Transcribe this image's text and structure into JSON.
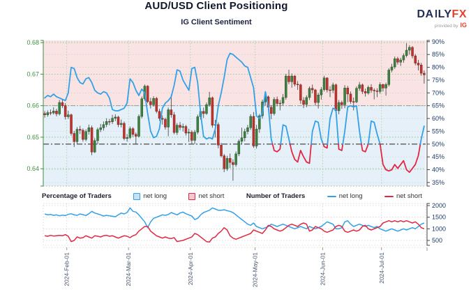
{
  "header": {
    "title": "AUD/USD Client Positioning",
    "subtitle": "IG Client Sentiment"
  },
  "logo": {
    "brand_left": "DA",
    "brand_mid": "LY",
    "brand_accent": "FX",
    "provided_by": "provided by",
    "provider": "IG"
  },
  "legend": {
    "percentage_title": "Percentage of Traders",
    "pct_net_long": "net long",
    "pct_net_short": "net short",
    "number_title": "Number of Traders",
    "num_net_long": "net long",
    "num_net_short": "net short"
  },
  "colors": {
    "sentiment_long": "#33a0e8",
    "sentiment_short": "#e02843",
    "candle_up": "#3e8141",
    "candle_up_edge": "#245329",
    "candle_down": "#c1342e",
    "candle_down_edge": "#7e201c",
    "wick": "#4d4d4d",
    "bg_upper_pink": "#f9e4e3",
    "bg_lower_blue": "#e6f0f9",
    "grid_green": "#8bc48b",
    "grid_gray": "#cdd1d5",
    "month_grid_green": "#a5d2a5",
    "axis_green": "#3e8e41",
    "axis_navy": "#1f3a63",
    "axis_dark": "#444444",
    "date_label": "#47546b",
    "threshold_line": "#4a4a4a",
    "split_line": "#9b9b9b"
  },
  "chart_data": [
    {
      "type": "candlestick+sentiment-line",
      "title": "IG Client Sentiment",
      "legend_position": "below",
      "grid": true,
      "x_ticks": [
        {
          "i": 8,
          "label": "2024-Feb-01"
        },
        {
          "i": 29,
          "label": "2024-Mar-01"
        },
        {
          "i": 50,
          "label": "2024-Apr-01"
        },
        {
          "i": 72,
          "label": "2024-May-01"
        },
        {
          "i": 95,
          "label": "2024-Jun-01"
        },
        {
          "i": 115,
          "label": "2024-Jul-01"
        }
      ],
      "price_axis": {
        "side": "left",
        "range": [
          0.6345,
          0.6807
        ],
        "ticks": [
          0.68,
          0.67,
          0.66,
          0.65,
          0.64
        ]
      },
      "percent_axis": {
        "side": "right",
        "range": [
          33.6,
          90.5
        ],
        "ticks": [
          90,
          85,
          80,
          75,
          70,
          65,
          60,
          55,
          50,
          45,
          40,
          35
        ],
        "unit": "%"
      },
      "threshold_pct": 50,
      "split_price": 0.66,
      "first_open": 0.6575,
      "candles_hlc": [
        [
          0.6583,
          0.6562,
          0.6571
        ],
        [
          0.6585,
          0.6565,
          0.6578
        ],
        [
          0.6588,
          0.657,
          0.6577
        ],
        [
          0.6595,
          0.6572,
          0.6583
        ],
        [
          0.659,
          0.6566,
          0.6574
        ],
        [
          0.6618,
          0.6569,
          0.661
        ],
        [
          0.6621,
          0.6593,
          0.66
        ],
        [
          0.6608,
          0.6556,
          0.6565
        ],
        [
          0.6584,
          0.6558,
          0.6571
        ],
        [
          0.6575,
          0.6505,
          0.6512
        ],
        [
          0.652,
          0.6469,
          0.6486
        ],
        [
          0.6532,
          0.6478,
          0.6525
        ],
        [
          0.6536,
          0.651,
          0.6522
        ],
        [
          0.6528,
          0.6486,
          0.6493
        ],
        [
          0.6525,
          0.6487,
          0.6518
        ],
        [
          0.654,
          0.6508,
          0.653
        ],
        [
          0.6537,
          0.6443,
          0.6453
        ],
        [
          0.6497,
          0.645,
          0.6489
        ],
        [
          0.653,
          0.6477,
          0.6524
        ],
        [
          0.6542,
          0.6516,
          0.653
        ],
        [
          0.655,
          0.6521,
          0.654
        ],
        [
          0.656,
          0.6532,
          0.655
        ],
        [
          0.6558,
          0.6538,
          0.6549
        ],
        [
          0.6571,
          0.6542,
          0.656
        ],
        [
          0.6573,
          0.6551,
          0.6564
        ],
        [
          0.6568,
          0.6532,
          0.654
        ],
        [
          0.6556,
          0.6531,
          0.6544
        ],
        [
          0.655,
          0.649,
          0.6496
        ],
        [
          0.651,
          0.6486,
          0.6499
        ],
        [
          0.6534,
          0.6494,
          0.6527
        ],
        [
          0.6532,
          0.6501,
          0.6509
        ],
        [
          0.6515,
          0.6477,
          0.6503
        ],
        [
          0.6572,
          0.6499,
          0.6566
        ],
        [
          0.6629,
          0.656,
          0.6622
        ],
        [
          0.6667,
          0.6616,
          0.6662
        ],
        [
          0.6665,
          0.6608,
          0.6613
        ],
        [
          0.6625,
          0.6591,
          0.6603
        ],
        [
          0.663,
          0.6597,
          0.6623
        ],
        [
          0.6628,
          0.6576,
          0.6582
        ],
        [
          0.659,
          0.6552,
          0.656
        ],
        [
          0.6569,
          0.654,
          0.6557
        ],
        [
          0.6562,
          0.6524,
          0.6532
        ],
        [
          0.6594,
          0.6503,
          0.6587
        ],
        [
          0.6635,
          0.6562,
          0.6571
        ],
        [
          0.658,
          0.6509,
          0.6515
        ],
        [
          0.6545,
          0.6507,
          0.6538
        ],
        [
          0.6548,
          0.6522,
          0.6531
        ],
        [
          0.6543,
          0.6518,
          0.6534
        ],
        [
          0.6539,
          0.6505,
          0.6513
        ],
        [
          0.6527,
          0.6485,
          0.6516
        ],
        [
          0.6522,
          0.648,
          0.649
        ],
        [
          0.6523,
          0.6478,
          0.6516
        ],
        [
          0.6572,
          0.6509,
          0.6565
        ],
        [
          0.659,
          0.6556,
          0.6582
        ],
        [
          0.6594,
          0.6561,
          0.6575
        ],
        [
          0.661,
          0.6571,
          0.6603
        ],
        [
          0.6644,
          0.6597,
          0.6625
        ],
        [
          0.6629,
          0.653,
          0.6538
        ],
        [
          0.6555,
          0.6499,
          0.654
        ],
        [
          0.6547,
          0.6465,
          0.6475
        ],
        [
          0.6482,
          0.6436,
          0.6441
        ],
        [
          0.6447,
          0.6389,
          0.64
        ],
        [
          0.6441,
          0.6393,
          0.6433
        ],
        [
          0.6448,
          0.6402,
          0.642
        ],
        [
          0.643,
          0.6362,
          0.6413
        ],
        [
          0.6455,
          0.6406,
          0.6447
        ],
        [
          0.6493,
          0.644,
          0.6487
        ],
        [
          0.653,
          0.6478,
          0.6498
        ],
        [
          0.6527,
          0.6487,
          0.6518
        ],
        [
          0.6539,
          0.6509,
          0.653
        ],
        [
          0.6573,
          0.6523,
          0.6566
        ],
        [
          0.658,
          0.6466,
          0.6472
        ],
        [
          0.6539,
          0.6464,
          0.6526
        ],
        [
          0.6574,
          0.6514,
          0.6568
        ],
        [
          0.6619,
          0.6559,
          0.6612
        ],
        [
          0.6635,
          0.6601,
          0.6628
        ],
        [
          0.6632,
          0.6586,
          0.6595
        ],
        [
          0.6602,
          0.6557,
          0.6575
        ],
        [
          0.6627,
          0.6569,
          0.662
        ],
        [
          0.6629,
          0.6598,
          0.6607
        ],
        [
          0.6618,
          0.6585,
          0.6608
        ],
        [
          0.6637,
          0.6601,
          0.6626
        ],
        [
          0.6701,
          0.6619,
          0.6694
        ],
        [
          0.6714,
          0.6668,
          0.6676
        ],
        [
          0.6702,
          0.6657,
          0.6694
        ],
        [
          0.6697,
          0.6661,
          0.6668
        ],
        [
          0.6678,
          0.665,
          0.6666
        ],
        [
          0.667,
          0.6606,
          0.6617
        ],
        [
          0.6627,
          0.6592,
          0.6604
        ],
        [
          0.6633,
          0.6595,
          0.6626
        ],
        [
          0.6661,
          0.6618,
          0.6655
        ],
        [
          0.6667,
          0.6639,
          0.665
        ],
        [
          0.6653,
          0.6601,
          0.661
        ],
        [
          0.6641,
          0.6591,
          0.6634
        ],
        [
          0.6659,
          0.6619,
          0.6651
        ],
        [
          0.6695,
          0.6645,
          0.6688
        ],
        [
          0.669,
          0.6642,
          0.665
        ],
        [
          0.6662,
          0.6627,
          0.6649
        ],
        [
          0.6673,
          0.664,
          0.6666
        ],
        [
          0.667,
          0.6576,
          0.6584
        ],
        [
          0.6618,
          0.6573,
          0.661
        ],
        [
          0.6616,
          0.659,
          0.6603
        ],
        [
          0.6665,
          0.6592,
          0.6656
        ],
        [
          0.6663,
          0.6611,
          0.6637
        ],
        [
          0.6645,
          0.6606,
          0.6613
        ],
        [
          0.6626,
          0.6585,
          0.6612
        ],
        [
          0.6661,
          0.6608,
          0.6655
        ],
        [
          0.6675,
          0.6647,
          0.6666
        ],
        [
          0.667,
          0.6637,
          0.6645
        ],
        [
          0.6654,
          0.6629,
          0.664
        ],
        [
          0.6664,
          0.6635,
          0.6658
        ],
        [
          0.6668,
          0.6641,
          0.6649
        ],
        [
          0.6655,
          0.662,
          0.6647
        ],
        [
          0.6655,
          0.6627,
          0.6645
        ],
        [
          0.6674,
          0.6638,
          0.6667
        ],
        [
          0.667,
          0.6645,
          0.6656
        ],
        [
          0.6673,
          0.6632,
          0.6667
        ],
        [
          0.6719,
          0.6661,
          0.6713
        ],
        [
          0.6733,
          0.6706,
          0.6723
        ],
        [
          0.6756,
          0.6717,
          0.6749
        ],
        [
          0.6755,
          0.673,
          0.6738
        ],
        [
          0.6752,
          0.6726,
          0.6745
        ],
        [
          0.6766,
          0.6736,
          0.6759
        ],
        [
          0.6798,
          0.6753,
          0.6776
        ],
        [
          0.6792,
          0.6762,
          0.6785
        ],
        [
          0.6789,
          0.675,
          0.6758
        ],
        [
          0.6764,
          0.6728,
          0.6735
        ],
        [
          0.6745,
          0.6712,
          0.6729
        ],
        [
          0.6736,
          0.6695,
          0.6703
        ],
        [
          0.6712,
          0.667,
          0.6698
        ]
      ],
      "sentiment_net_long_pct": [
        68,
        69,
        68.5,
        69.5,
        68.5,
        68,
        67.5,
        67,
        70,
        80,
        79.5,
        76,
        74,
        73.5,
        75.5,
        76,
        74,
        71,
        70,
        69.5,
        70.5,
        70,
        68,
        63.5,
        63,
        63,
        63.5,
        64,
        66,
        75.5,
        74,
        71,
        69,
        71.5,
        70,
        62,
        55,
        52.5,
        53,
        56,
        64,
        66,
        67,
        68.5,
        73,
        79,
        78.5,
        75,
        73,
        71,
        79.5,
        80,
        74,
        62,
        53,
        52,
        52.5,
        52,
        56,
        65,
        70,
        76,
        83,
        85.5,
        85,
        84,
        83,
        82,
        80.5,
        80,
        76,
        72,
        61,
        60,
        62,
        70.5,
        65,
        52,
        47.5,
        47,
        48,
        57.5,
        57,
        52,
        47,
        44,
        43,
        47.5,
        45,
        43,
        42.5,
        55,
        59,
        58.5,
        52,
        49,
        48.5,
        60,
        64,
        63.5,
        48,
        47.5,
        55,
        64.5,
        65,
        64.5,
        65,
        55,
        47.5,
        47,
        50,
        59,
        58.5,
        54,
        50,
        42,
        40,
        39.5,
        40,
        42,
        40.5,
        42,
        43.5,
        40,
        39,
        40.5,
        42,
        45.5,
        52,
        57
      ]
    },
    {
      "type": "line",
      "y_axis": {
        "side": "right",
        "range": [
          290,
          2090
        ],
        "ticks": [
          2000,
          1500,
          1000,
          500
        ]
      },
      "series": [
        {
          "name": "net long",
          "color_key": "sentiment_long",
          "values": [
            1640,
            1600,
            1620,
            1580,
            1600,
            1560,
            1590,
            1570,
            1620,
            1650,
            1600,
            1580,
            1640,
            1610,
            1570,
            1650,
            1750,
            1680,
            1640,
            1600,
            1550,
            1580,
            1560,
            1540,
            1520,
            1600,
            1680,
            1640,
            1700,
            1900,
            1750,
            1720,
            1600,
            1450,
            1300,
            1050,
            1300,
            1450,
            1500,
            1550,
            1600,
            1580,
            1620,
            1700,
            1650,
            1600,
            1680,
            1720,
            1650,
            1600,
            1550,
            1400,
            1450,
            1600,
            1700,
            1750,
            1800,
            1900,
            1850,
            1800,
            1800,
            1820,
            1780,
            1750,
            1700,
            1600,
            1500,
            1400,
            1300,
            1200,
            1150,
            1250,
            1100,
            1050,
            1000,
            1050,
            1100,
            1200,
            1150,
            1100,
            1150,
            1200,
            1150,
            1100,
            1050,
            1000,
            1050,
            1100,
            1050,
            1000,
            1100,
            1050,
            1000,
            1050,
            1100,
            1200,
            1300,
            1250,
            1200,
            1000,
            1000,
            1050,
            1300,
            1350,
            1200,
            1100,
            1150,
            1200,
            1150,
            1100,
            1150,
            1100,
            1050,
            1100,
            1000,
            950,
            900,
            950,
            1000,
            950,
            900,
            950,
            1000,
            950,
            1000,
            1050,
            1000,
            1100,
            1200,
            1250
          ]
        },
        {
          "name": "net short",
          "color_key": "sentiment_short",
          "values": [
            700,
            680,
            720,
            690,
            700,
            720,
            700,
            750,
            680,
            450,
            500,
            650,
            600,
            620,
            700,
            650,
            600,
            700,
            680,
            650,
            700,
            720,
            680,
            700,
            650,
            600,
            650,
            700,
            680,
            620,
            700,
            750,
            900,
            1000,
            1100,
            1100,
            900,
            800,
            700,
            650,
            600,
            650,
            600,
            580,
            620,
            450,
            480,
            500,
            550,
            600,
            650,
            800,
            750,
            650,
            550,
            450,
            430,
            600,
            650,
            800,
            900,
            1050,
            950,
            700,
            600,
            550,
            600,
            650,
            700,
            750,
            800,
            950,
            900,
            850,
            800,
            950,
            1150,
            1100,
            1000,
            950,
            900,
            950,
            1050,
            1150,
            1200,
            1150,
            1100,
            1200,
            1250,
            1200,
            900,
            950,
            1100,
            1050,
            1000,
            900,
            850,
            900,
            950,
            1100,
            1150,
            1100,
            900,
            850,
            900,
            950,
            900,
            950,
            1100,
            1150,
            1000,
            950,
            1000,
            1050,
            1100,
            1250,
            1300,
            1350,
            1300,
            1350,
            1300,
            1350,
            1300,
            1350,
            1300,
            1250,
            1300,
            1200,
            1050,
            1000
          ]
        }
      ]
    }
  ]
}
